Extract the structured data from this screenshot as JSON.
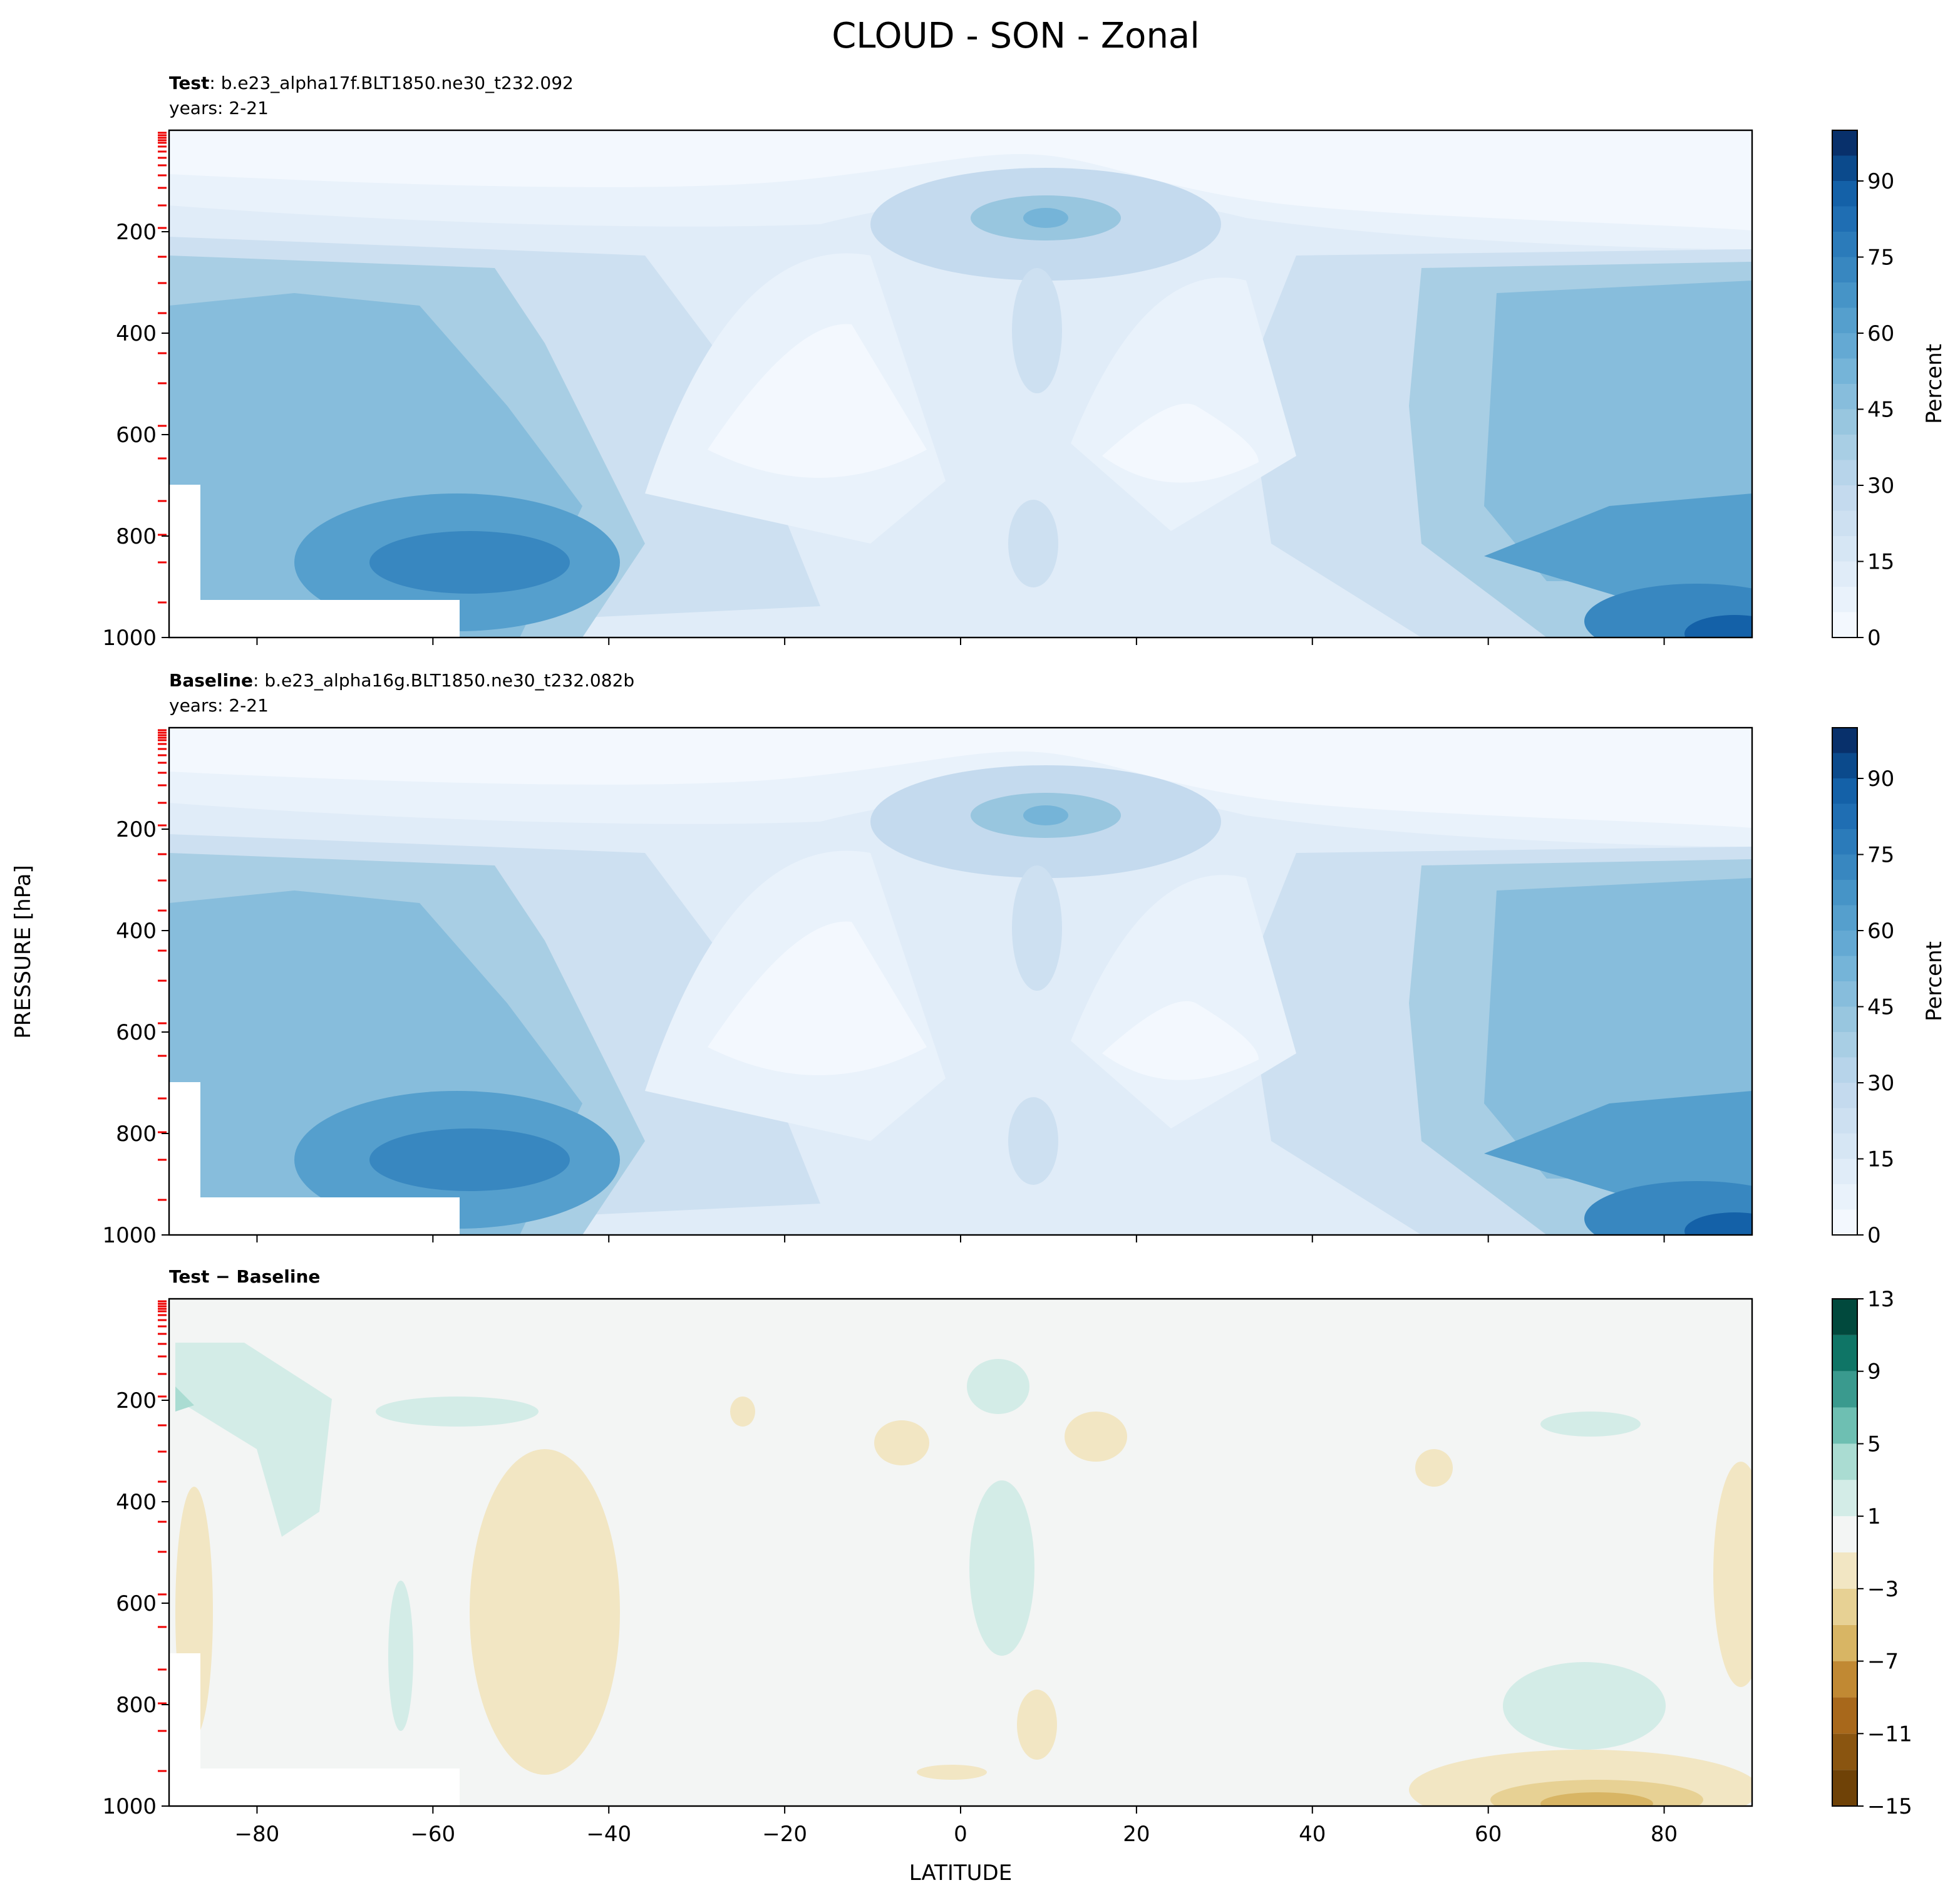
{
  "title": "CLOUD - SON - Zonal",
  "ylabel": "PRESSURE [hPa]",
  "xlabel": "LATITUDE",
  "chart_data": [
    {
      "type": "contour",
      "label": "Test",
      "case": ": b.e23_alpha17f.BLT1850.ne30_t232.092",
      "years": "years: 2-21",
      "xlim": [
        -90,
        90
      ],
      "xticks": [
        -80,
        -60,
        -40,
        -20,
        0,
        20,
        40,
        60,
        80
      ],
      "ylim": [
        1000,
        0
      ],
      "yticks": [
        200,
        400,
        600,
        800,
        1000
      ],
      "colorbar": {
        "label": "Percent",
        "lim": [
          0,
          100
        ],
        "ticks": [
          0,
          15,
          30,
          45,
          60,
          75,
          90
        ],
        "levels": [
          0,
          5,
          10,
          15,
          20,
          25,
          30,
          35,
          40,
          45,
          50,
          55,
          60,
          65,
          70,
          75,
          80,
          85,
          90,
          95,
          100
        ],
        "colors": [
          "#f3f8fe",
          "#e9f2fb",
          "#e0ecf8",
          "#d6e6f4",
          "#cde0f1",
          "#c4daee",
          "#b7d4ea",
          "#a8cee4",
          "#98c6df",
          "#87bddc",
          "#75b4d8",
          "#64a9d3",
          "#559fcd",
          "#4694c7",
          "#3887c0",
          "#2b7bba",
          "#1f6eb3",
          "#1461a8",
          "#0b4a8c",
          "#08306b"
        ]
      }
    },
    {
      "type": "contour",
      "label": "Baseline",
      "case": ": b.e23_alpha16g.BLT1850.ne30_t232.082b",
      "years": "years: 2-21",
      "xlim": [
        -90,
        90
      ],
      "xticks": [
        -80,
        -60,
        -40,
        -20,
        0,
        20,
        40,
        60,
        80
      ],
      "ylim": [
        1000,
        0
      ],
      "yticks": [
        200,
        400,
        600,
        800,
        1000
      ],
      "colorbar": {
        "label": "Percent",
        "lim": [
          0,
          100
        ],
        "ticks": [
          0,
          15,
          30,
          45,
          60,
          75,
          90
        ],
        "levels": [
          0,
          5,
          10,
          15,
          20,
          25,
          30,
          35,
          40,
          45,
          50,
          55,
          60,
          65,
          70,
          75,
          80,
          85,
          90,
          95,
          100
        ],
        "colors": [
          "#f3f8fe",
          "#e9f2fb",
          "#e0ecf8",
          "#d6e6f4",
          "#cde0f1",
          "#c4daee",
          "#b7d4ea",
          "#a8cee4",
          "#98c6df",
          "#87bddc",
          "#75b4d8",
          "#64a9d3",
          "#559fcd",
          "#4694c7",
          "#3887c0",
          "#2b7bba",
          "#1f6eb3",
          "#1461a8",
          "#0b4a8c",
          "#08306b"
        ]
      }
    },
    {
      "type": "contour",
      "label": "Test − Baseline",
      "xlim": [
        -90,
        90
      ],
      "xticks": [
        {
          "value": -80,
          "label": "−80"
        },
        {
          "value": -60,
          "label": "−60"
        },
        {
          "value": -40,
          "label": "−40"
        },
        {
          "value": -20,
          "label": "−20"
        },
        0,
        20,
        40,
        60,
        80
      ],
      "ylim": [
        1000,
        0
      ],
      "yticks": [
        200,
        400,
        600,
        800,
        1000
      ],
      "colorbar": {
        "lim": [
          -15,
          13
        ],
        "ticks": [
          {
            "value": -15,
            "label": "−15"
          },
          {
            "value": -11,
            "label": "−11"
          },
          {
            "value": -7,
            "label": "−7"
          },
          {
            "value": -3,
            "label": "−3"
          },
          1,
          5,
          9,
          13
        ],
        "levels": [
          -15,
          -13,
          -11,
          -9,
          -7,
          -5,
          -3,
          -1,
          1,
          3,
          5,
          7,
          9,
          11,
          13
        ],
        "colors": [
          "#6f4207",
          "#8a5510",
          "#a8681b",
          "#c18933",
          "#d8b564",
          "#e7d194",
          "#f2e6c3",
          "#f3f5f4",
          "#d3ece7",
          "#aadcd2",
          "#6ebfb2",
          "#3a9a8e",
          "#0f7566",
          "#01493d"
        ]
      }
    }
  ]
}
